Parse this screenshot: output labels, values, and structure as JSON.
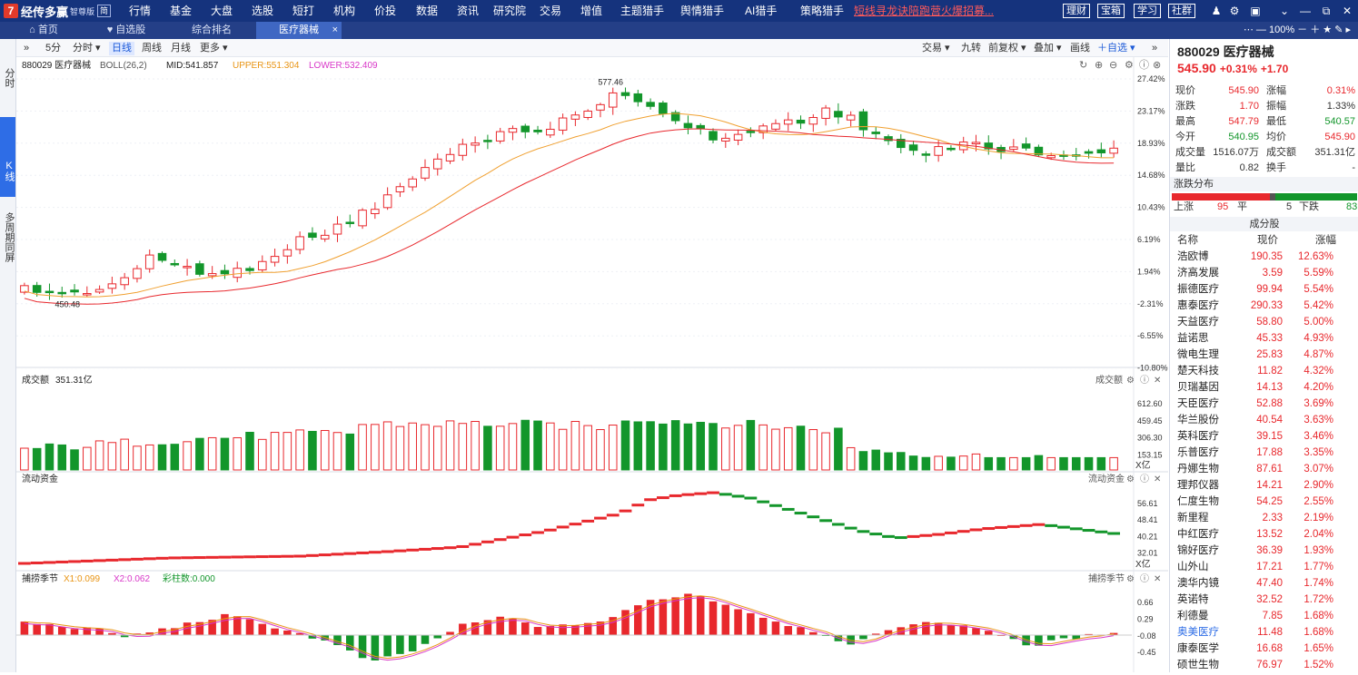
{
  "app": {
    "logo_mark": "7",
    "name": "经传多赢",
    "edition": "智尊版",
    "view_badge": "简"
  },
  "topmenu": [
    "行情",
    "基金",
    "大盘",
    "选股",
    "短打",
    "机构",
    "价投",
    "数据",
    "资讯",
    "研究院",
    "交易",
    "增值",
    "主题猎手",
    "舆情猎手",
    "AI猎手",
    "策略猎手"
  ],
  "promo_text": "短线寻龙诀陪跑营火爆招募...",
  "top_buttons": [
    "理财",
    "宝箱",
    "学习",
    "社群"
  ],
  "top_icons": [
    "user-icon",
    "gear-icon",
    "window-icon",
    "chevron-down-icon",
    "minimize-icon",
    "restore-icon",
    "close-icon"
  ],
  "tabs": {
    "home": "首页",
    "watch": "自选股",
    "rank": "综合排名",
    "active": "医疗器械",
    "close": "×",
    "zoom": "100%",
    "controls": "－ ＋ ★ ✎ ▸"
  },
  "left_rail": {
    "fenshi": "分时",
    "kline": "K线",
    "multi": "多周期同屏"
  },
  "period_toolbar": {
    "expand": "»",
    "p5": "5分",
    "pmin": "分时 ▾",
    "day": "日线",
    "week": "周线",
    "month": "月线",
    "more": "更多 ▾"
  },
  "right_toolbar": [
    "交易 ▾",
    "九转",
    "前复权 ▾",
    "叠加 ▾",
    "画线",
    "＋自选 ▾",
    "»"
  ],
  "chart_header": {
    "name": "880029 医疗器械",
    "indicator": "BOLL(26,2)",
    "mid": "MID:541.857",
    "upper": "UPPER:551.304",
    "lower": "LOWER:532.409"
  },
  "chart_icons": [
    "refresh-icon",
    "zoom-in-icon",
    "zoom-out-icon",
    "settings-icon",
    "help-icon",
    "close-icon"
  ],
  "price_axis": [
    "27.42%",
    "23.17%",
    "18.93%",
    "14.68%",
    "10.43%",
    "6.19%",
    "1.94%",
    "-2.31%",
    "-6.55%",
    "-10.80%"
  ],
  "annotations": {
    "high": "577.46",
    "low": "450.48"
  },
  "volume_panel": {
    "label": "成交额",
    "value": "351.31亿",
    "right_label": "成交额",
    "axis": [
      "612.60",
      "459.45",
      "306.30",
      "153.15"
    ],
    "unit": "X亿"
  },
  "flow_panel": {
    "label": "流动资金",
    "right_label": "流动资金",
    "axis": [
      "56.61",
      "48.41",
      "40.21",
      "32.01"
    ],
    "unit": "X亿"
  },
  "season_panel": {
    "label": "捕捞季节",
    "x1": "X1:0.099",
    "x2": "X2:0.062",
    "bars": "彩柱数:0.000",
    "right_label": "捕捞季节",
    "axis": [
      "0.66",
      "0.29",
      "-0.08",
      "-0.45"
    ]
  },
  "colors": {
    "up": "#e8282d",
    "down": "#13962b",
    "mid_line": "#f0a030",
    "lower_line": "#e8282d",
    "upper_line": "#e8282d",
    "accent": "#2e6de6"
  },
  "quote": {
    "code": "880029",
    "name": "医疗器械",
    "price": "545.90",
    "pct": "+0.31%",
    "chg": "+1.70",
    "rows": [
      [
        "现价",
        "545.90",
        "up",
        "涨幅",
        "0.31%",
        "up"
      ],
      [
        "涨跌",
        "1.70",
        "up",
        "振幅",
        "1.33%",
        "plain"
      ],
      [
        "最高",
        "547.79",
        "up",
        "最低",
        "540.57",
        "dn"
      ],
      [
        "今开",
        "540.95",
        "dn",
        "均价",
        "545.90",
        "up"
      ],
      [
        "成交量",
        "1516.07万",
        "plain",
        "成交额",
        "351.31亿",
        "plain"
      ],
      [
        "量比",
        "0.82",
        "plain",
        "换手",
        "-",
        "plain"
      ]
    ]
  },
  "breadth": {
    "title": "涨跌分布",
    "up_label": "上涨",
    "up_count": "95",
    "flat_label": "平",
    "flat_count": "5",
    "down_label": "下跌",
    "down_count": "83"
  },
  "constituents": {
    "title": "成分股",
    "headers": [
      "名称",
      "现价",
      "涨幅"
    ],
    "rows": [
      [
        "浩欧博",
        "190.35",
        "12.63%"
      ],
      [
        "济高发展",
        "3.59",
        "5.59%"
      ],
      [
        "振德医疗",
        "99.94",
        "5.54%"
      ],
      [
        "惠泰医疗",
        "290.33",
        "5.42%"
      ],
      [
        "天益医疗",
        "58.80",
        "5.00%"
      ],
      [
        "益诺思",
        "45.33",
        "4.93%"
      ],
      [
        "微电生理",
        "25.83",
        "4.87%"
      ],
      [
        "楚天科技",
        "11.82",
        "4.32%"
      ],
      [
        "贝瑞基因",
        "14.13",
        "4.20%"
      ],
      [
        "天臣医疗",
        "52.88",
        "3.69%"
      ],
      [
        "华兰股份",
        "40.54",
        "3.63%"
      ],
      [
        "英科医疗",
        "39.15",
        "3.46%"
      ],
      [
        "乐普医疗",
        "17.88",
        "3.35%"
      ],
      [
        "丹娜生物",
        "87.61",
        "3.07%"
      ],
      [
        "理邦仪器",
        "14.21",
        "2.90%"
      ],
      [
        "仁度生物",
        "54.25",
        "2.55%"
      ],
      [
        "新里程",
        "2.33",
        "2.19%"
      ],
      [
        "中红医疗",
        "13.52",
        "2.04%"
      ],
      [
        "锦好医疗",
        "36.39",
        "1.93%"
      ],
      [
        "山外山",
        "17.21",
        "1.77%"
      ],
      [
        "澳华内镜",
        "47.40",
        "1.74%"
      ],
      [
        "英诺特",
        "32.52",
        "1.72%"
      ],
      [
        "利德曼",
        "7.85",
        "1.68%"
      ],
      [
        "奥美医疗",
        "11.48",
        "1.68%"
      ],
      [
        "康泰医学",
        "16.68",
        "1.65%"
      ],
      [
        "硕世生物",
        "76.97",
        "1.52%"
      ]
    ]
  }
}
